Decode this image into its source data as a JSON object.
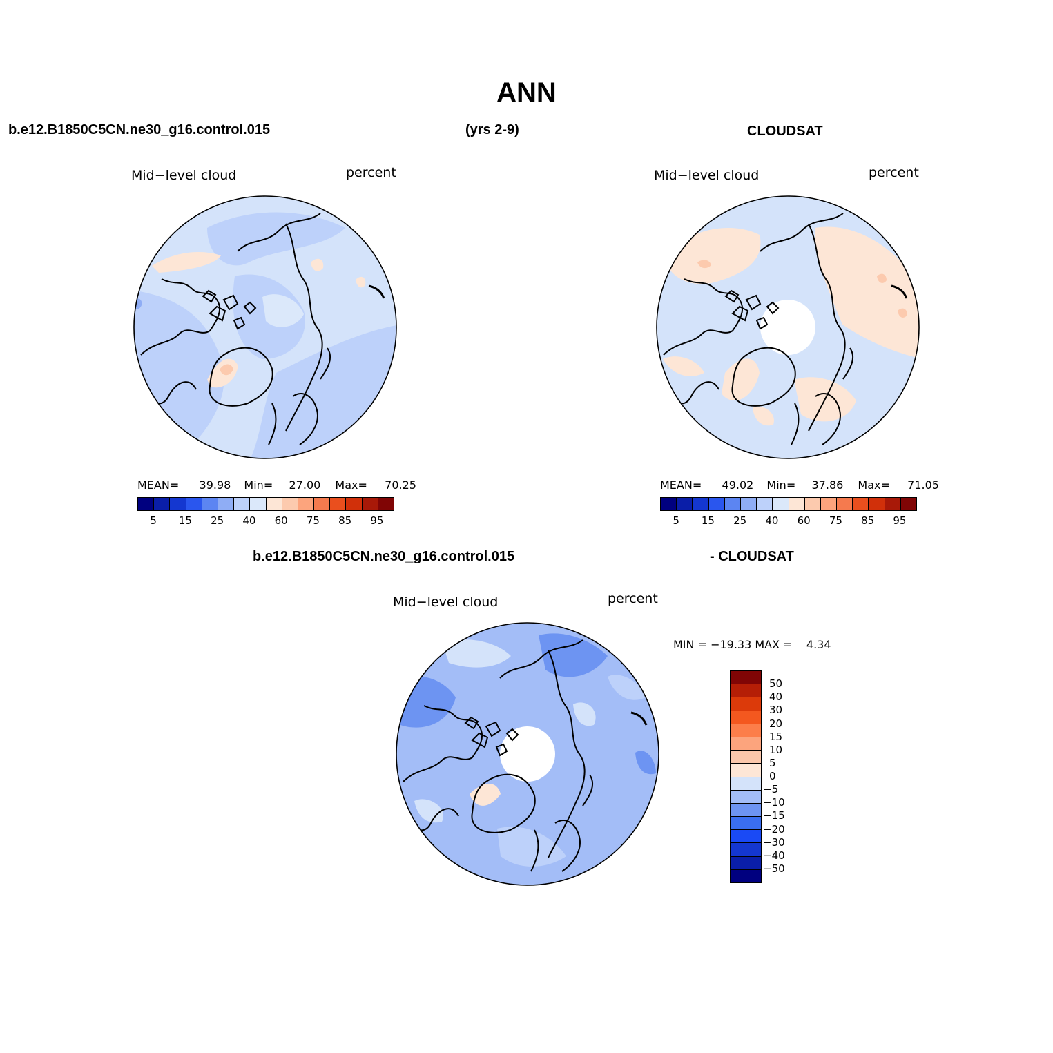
{
  "title": "ANN",
  "header": {
    "case_name": "b.e12.B1850C5CN.ne30_g16.control.015",
    "years": "(yrs 2-9)",
    "obs_name": "CLOUDSAT",
    "diff_case": "b.e12.B1850C5CN.ne30_g16.control.015",
    "diff_obs": "- CLOUDSAT"
  },
  "panels": {
    "model": {
      "variable": "Mid−level cloud",
      "units": "percent",
      "mean_label": "MEAN=",
      "mean": "39.98",
      "min_label": "Min=",
      "min": "27.00",
      "max_label": "Max=",
      "max": "70.25"
    },
    "obs": {
      "variable": "Mid−level cloud",
      "units": "percent",
      "mean_label": "MEAN=",
      "mean": "49.02",
      "min_label": "Min=",
      "min": "37.86",
      "max_label": "Max=",
      "max": "71.05"
    },
    "diff": {
      "variable": "Mid−level cloud",
      "units": "percent",
      "minmax": "MIN = −19.33 MAX =    4.34"
    }
  },
  "colorbar_main": {
    "labels": [
      "5",
      "15",
      "25",
      "40",
      "60",
      "75",
      "85",
      "95"
    ],
    "colors": [
      "#00007f",
      "#0a1ea8",
      "#1437d0",
      "#2a56ee",
      "#5c85f2",
      "#8fadf5",
      "#bdd1fa",
      "#dbe8fa",
      "#fde6d6",
      "#fccaae",
      "#fca47d",
      "#f57a4e",
      "#ea4f1e",
      "#d1300a",
      "#a81908",
      "#800505"
    ]
  },
  "colorbar_diff": {
    "labels": [
      "−50",
      "−40",
      "−30",
      "−20",
      "−15",
      "−10",
      "−5",
      "0",
      "5",
      "10",
      "15",
      "20",
      "30",
      "40",
      "50"
    ],
    "colors": [
      "#00007f",
      "#0a1ea8",
      "#1437d0",
      "#1a4af5",
      "#3a6ef0",
      "#6d94f2",
      "#a3bdf7",
      "#d4e3fa",
      "#fde6d6",
      "#fbc7ab",
      "#fca47d",
      "#fc7e4a",
      "#f4581f",
      "#dc3a0a",
      "#b51e06",
      "#800505"
    ]
  }
}
